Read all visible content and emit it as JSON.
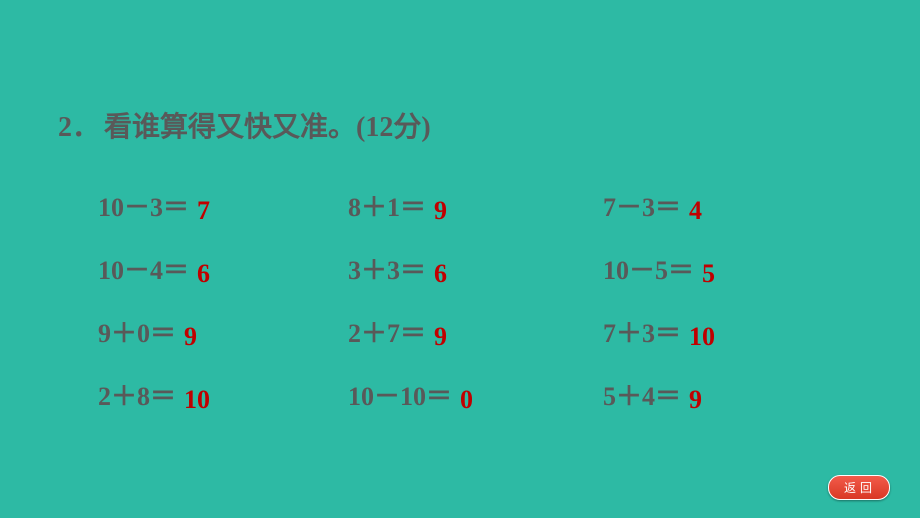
{
  "colors": {
    "background": "#2dbaa4",
    "text_grey": "#595959",
    "answer_red": "#c00000",
    "button_bg_top": "#f25b4a",
    "button_bg_bottom": "#d93825",
    "button_text": "#ffffff"
  },
  "typography": {
    "title_fontsize_pt": 21,
    "body_fontsize_pt": 19,
    "button_fontsize_pt": 9
  },
  "question": {
    "number": "2．",
    "title": "看谁算得又快又准。",
    "points_open": "(12",
    "points_word": "分",
    "points_close": ")"
  },
  "rows": [
    [
      {
        "expr": "10－3＝",
        "ans": "7"
      },
      {
        "expr": "8＋1＝",
        "ans": "9"
      },
      {
        "expr": "7－3＝",
        "ans": "4"
      }
    ],
    [
      {
        "expr": "10－4＝",
        "ans": "6"
      },
      {
        "expr": "3＋3＝",
        "ans": "6"
      },
      {
        "expr": "10－5＝",
        "ans": "5"
      }
    ],
    [
      {
        "expr": "9＋0＝",
        "ans": "9"
      },
      {
        "expr": "2＋7＝",
        "ans": "9"
      },
      {
        "expr": "7＋3＝",
        "ans": "10"
      }
    ],
    [
      {
        "expr": "2＋8＝",
        "ans": "10"
      },
      {
        "expr": "10－10＝",
        "ans": "0"
      },
      {
        "expr": "5＋4＝",
        "ans": "9"
      }
    ]
  ],
  "back_button": "返回"
}
